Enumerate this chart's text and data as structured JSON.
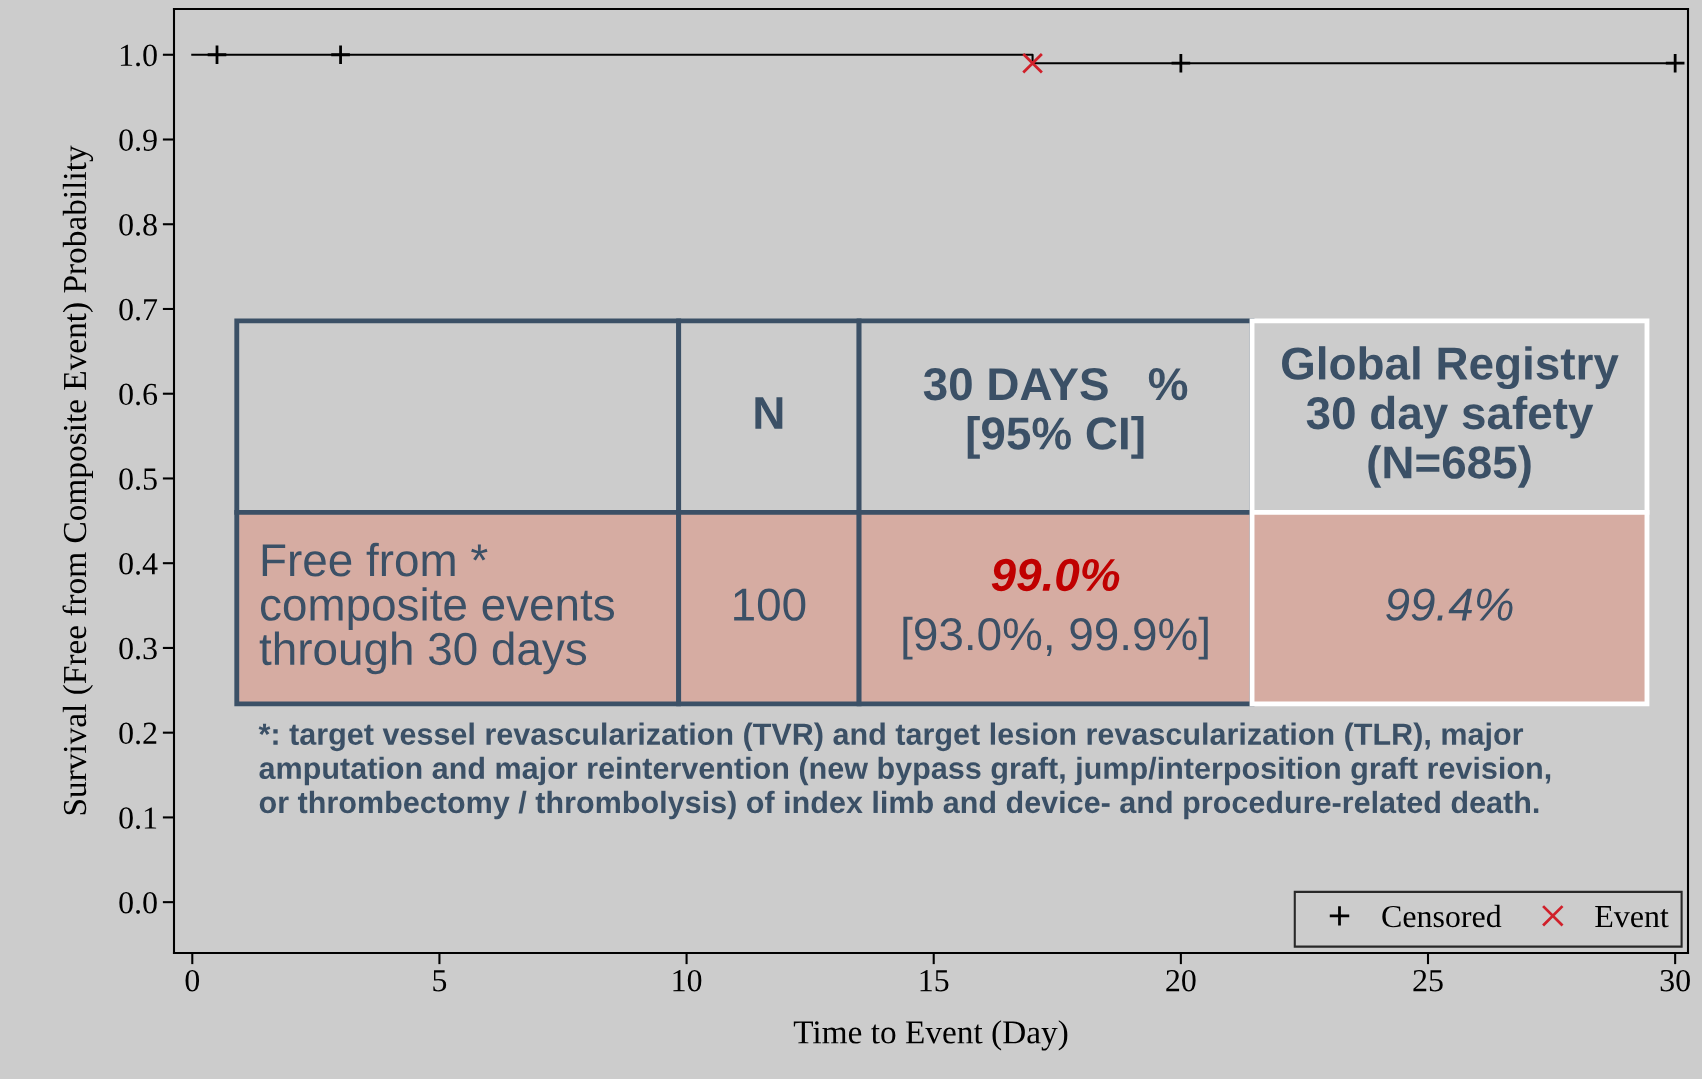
{
  "chart_data": {
    "type": "step",
    "xlabel": "Time to Event (Day)",
    "ylabel": "Survival (Free from Composite Event) Probability",
    "xlim": [
      -0.37,
      30.26
    ],
    "xticks": [
      0,
      5,
      10,
      15,
      20,
      25,
      30
    ],
    "ylim": [
      -0.06,
      1.054
    ],
    "yticks": [
      {
        "value": 0,
        "label": "0.0"
      },
      {
        "value": 0.1,
        "label": "0.1"
      },
      {
        "value": 0.2,
        "label": "0.2"
      },
      {
        "value": 0.3,
        "label": "0.3"
      },
      {
        "value": 0.4,
        "label": "0.4"
      },
      {
        "value": 0.5,
        "label": "0.5"
      },
      {
        "value": 0.6,
        "label": "0.6"
      },
      {
        "value": 0.7,
        "label": "0.7"
      },
      {
        "value": 0.8,
        "label": "0.8"
      },
      {
        "value": 0.9,
        "label": "0.9"
      },
      {
        "value": 1.0,
        "label": "1.0"
      }
    ],
    "grid": false,
    "legend": "bottom right",
    "series": [
      {
        "color": "#000000",
        "x": [
          0,
          17,
          30
        ],
        "values": [
          1.0,
          0.99,
          0.99
        ]
      },
      {
        "type": "scatter",
        "name": "Censored",
        "color": "#000000",
        "marker": "cross",
        "x": [
          0.5,
          3,
          20,
          30
        ],
        "values": [
          1.0,
          1.0,
          0.99,
          0.99
        ]
      },
      {
        "type": "scatter",
        "name": "Event",
        "color": "#d0202a",
        "marker": "x",
        "x": [
          17
        ],
        "values": [
          0.99
        ]
      }
    ],
    "annotations": [
      "N",
      "30 DAYS   %\n[95% CI]",
      "Global Registry\n30 day safety\n(N=685)",
      "Free from *\ncomposite events\nthrough 30 days",
      "100",
      "99.0%",
      "[93.0%, 99.9%]",
      "99.4%",
      "*: target vessel revascularization (TVR) and target lesion revascularization (TLR), major\namputation and major reintervention (new bypass graft, jump/interposition graft revision,\nor thrombectomy / thrombolysis) of index limb and device- and procedure-related death."
    ]
  }
}
